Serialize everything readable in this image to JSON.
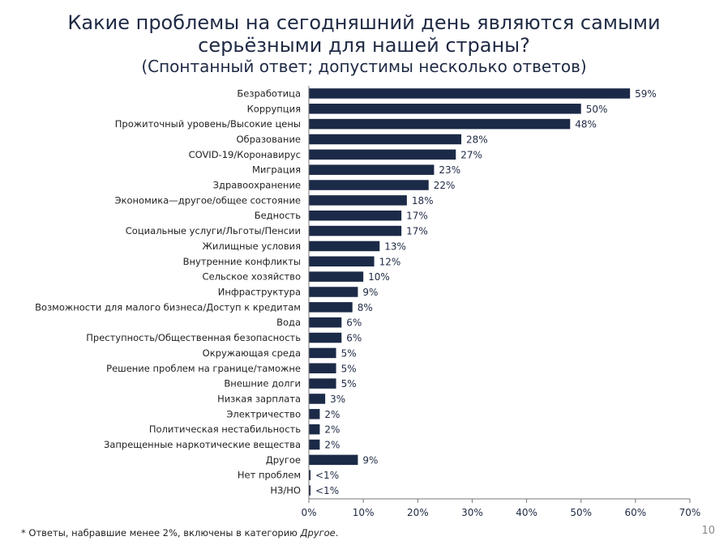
{
  "title_line1": "Какие проблемы на сегодняшний день являются самыми",
  "title_line2": "серьёзными для нашей страны?",
  "subtitle": "(Спонтанный ответ; допустимы несколько ответов)",
  "footnote_prefix": "* Ответы, набравшие менее 2%, включены в категорию ",
  "footnote_other": "Другое",
  "footnote_suffix": ".",
  "page_number": "10",
  "colors": {
    "bar": "#1b2a47",
    "text": "#1f2a44",
    "axis": "#777777"
  },
  "chart_data": {
    "type": "bar",
    "orientation": "horizontal",
    "categories": [
      "Безработица",
      "Коррупция",
      "Прожиточный уровень/Высокие цены",
      "Образование",
      "COVID-19/Коронавирус",
      "Миграция",
      "Здравоохранение",
      "Экономика—другое/общее состояние",
      "Бедность",
      "Социальные услуги/Льготы/Пенсии",
      "Жилищные условия",
      "Внутренние конфликты",
      "Сельское хозяйство",
      "Инфраструктура",
      "Возможности для малого бизнеса/Доступ к кредитам",
      "Вода",
      "Преступность/Общественная безопасность",
      "Окружающая среда",
      "Решение проблем на границе/таможне",
      "Внешние долги",
      "Низкая зарплата",
      "Электричество",
      "Политическая нестабильность",
      "Запрещенные наркотические вещества",
      "Другое",
      "Нет проблем",
      "НЗ/НО"
    ],
    "values": [
      59,
      50,
      48,
      28,
      27,
      23,
      22,
      18,
      17,
      17,
      13,
      12,
      10,
      9,
      8,
      6,
      6,
      5,
      5,
      5,
      3,
      2,
      2,
      2,
      9,
      0.3,
      0.3
    ],
    "data_labels": [
      "59%",
      "50%",
      "48%",
      "28%",
      "27%",
      "23%",
      "22%",
      "18%",
      "17%",
      "17%",
      "13%",
      "12%",
      "10%",
      "9%",
      "8%",
      "6%",
      "6%",
      "5%",
      "5%",
      "5%",
      "3%",
      "2%",
      "2%",
      "2%",
      "9%",
      "<1%",
      "<1%"
    ],
    "xlim": [
      0,
      70
    ],
    "xticks": [
      0,
      10,
      20,
      30,
      40,
      50,
      60,
      70
    ],
    "xtick_labels": [
      "0%",
      "10%",
      "20%",
      "30%",
      "40%",
      "50%",
      "60%",
      "70%"
    ],
    "grid": false,
    "legend": "none"
  }
}
